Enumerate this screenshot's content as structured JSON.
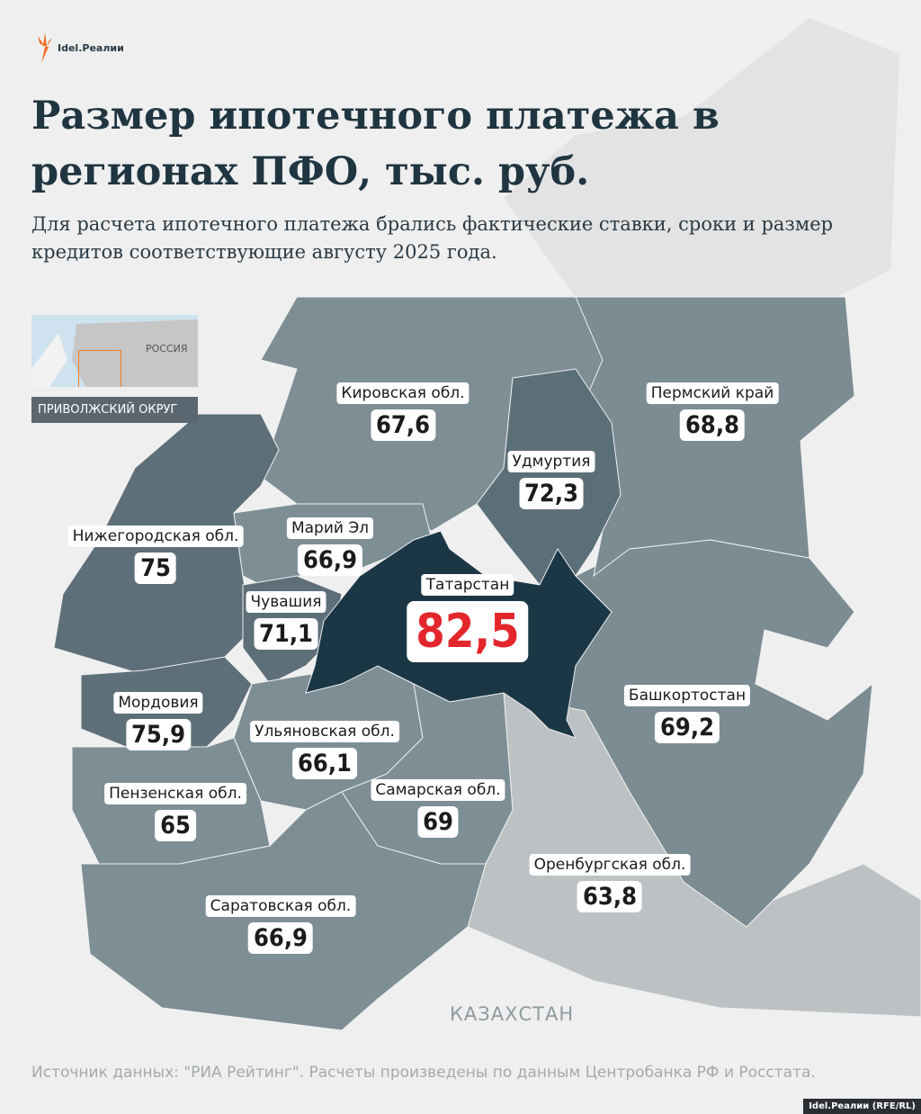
{
  "logo": {
    "text": "Idel.Реалии"
  },
  "title": "Размер ипотечного платежа в регионах ПФО, тыс. руб.",
  "subtitle": "Для расчета ипотечного платежа брались фактические ставки, сроки и размер кредитов соответствующие августу 2025 года.",
  "inset": {
    "country_label": "РОССИЯ",
    "district_label": "ПРИВОЛЖСКИЙ ОКРУГ",
    "highlight_color": "#f07d1e"
  },
  "colors": {
    "background": "#efefef",
    "highlight_value": "#e3262c",
    "tatarstan": "#1b3746"
  },
  "regions": [
    {
      "name": "Кировская обл.",
      "value": "67,6"
    },
    {
      "name": "Пермский край",
      "value": "68,8"
    },
    {
      "name": "Удмуртия",
      "value": "72,3"
    },
    {
      "name": "Марий Эл",
      "value": "66,9"
    },
    {
      "name": "Нижегородская обл.",
      "value": "75"
    },
    {
      "name": "Чувашия",
      "value": "71,1"
    },
    {
      "name": "Татарстан",
      "value": "82,5"
    },
    {
      "name": "Башкортостан",
      "value": "69,2"
    },
    {
      "name": "Мордовия",
      "value": "75,9"
    },
    {
      "name": "Ульяновская обл.",
      "value": "66,1"
    },
    {
      "name": "Самарская обл.",
      "value": "69"
    },
    {
      "name": "Пензенская обл.",
      "value": "65"
    },
    {
      "name": "Оренбургская обл.",
      "value": "63,8"
    },
    {
      "name": "Саратовская обл.",
      "value": "66,9"
    }
  ],
  "neighbor_label": "КАЗАХСТАН",
  "source": "Источник данных: \"РИА Рейтинг\". Расчеты произведены по данным Центробанка РФ и Росстата.",
  "credit": "Idel.Реалии (RFE/RL)"
}
